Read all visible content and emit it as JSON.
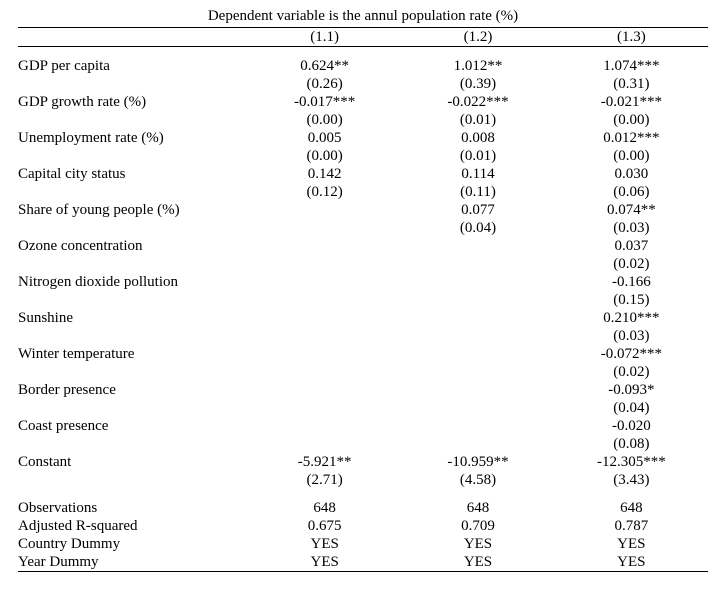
{
  "caption": "Dependent variable is the annul population rate (%)",
  "headers": {
    "c1": "(1.1)",
    "c2": "(1.2)",
    "c3": "(1.3)"
  },
  "rows": [
    {
      "label": "GDP per capita",
      "c1": "0.624**",
      "se1": "(0.26)",
      "c2": "1.012**",
      "se2": "(0.39)",
      "c3": "1.074***",
      "se3": "(0.31)"
    },
    {
      "label": "GDP growth rate (%)",
      "c1": "-0.017***",
      "se1": "(0.00)",
      "c2": "-0.022***",
      "se2": "(0.01)",
      "c3": "-0.021***",
      "se3": "(0.00)"
    },
    {
      "label": "Unemployment rate (%)",
      "c1": "0.005",
      "se1": "(0.00)",
      "c2": "0.008",
      "se2": "(0.01)",
      "c3": "0.012***",
      "se3": "(0.00)"
    },
    {
      "label": "Capital city status",
      "c1": "0.142",
      "se1": "(0.12)",
      "c2": "0.114",
      "se2": "(0.11)",
      "c3": "0.030",
      "se3": "(0.06)"
    },
    {
      "label": "Share of young people (%)",
      "c1": "",
      "se1": "",
      "c2": "0.077",
      "se2": "(0.04)",
      "c3": "0.074**",
      "se3": "(0.03)"
    },
    {
      "label": "Ozone concentration",
      "c1": "",
      "se1": "",
      "c2": "",
      "se2": "",
      "c3": "0.037",
      "se3": "(0.02)"
    },
    {
      "label": "Nitrogen dioxide pollution",
      "c1": "",
      "se1": "",
      "c2": "",
      "se2": "",
      "c3": "-0.166",
      "se3": "(0.15)"
    },
    {
      "label": "Sunshine",
      "c1": "",
      "se1": "",
      "c2": "",
      "se2": "",
      "c3": "0.210***",
      "se3": "(0.03)"
    },
    {
      "label": "Winter temperature",
      "c1": "",
      "se1": "",
      "c2": "",
      "se2": "",
      "c3": "-0.072***",
      "se3": "(0.02)"
    },
    {
      "label": "Border presence",
      "c1": "",
      "se1": "",
      "c2": "",
      "se2": "",
      "c3": "-0.093*",
      "se3": "(0.04)"
    },
    {
      "label": "Coast presence",
      "c1": "",
      "se1": "",
      "c2": "",
      "se2": "",
      "c3": "-0.020",
      "se3": "(0.08)"
    },
    {
      "label": "Constant",
      "c1": "-5.921**",
      "se1": "(2.71)",
      "c2": "-10.959**",
      "se2": "(4.58)",
      "c3": "-12.305***",
      "se3": "(3.43)"
    }
  ],
  "footer": [
    {
      "label": "Observations",
      "c1": "648",
      "c2": "648",
      "c3": "648"
    },
    {
      "label": "Adjusted R-squared",
      "c1": "0.675",
      "c2": "0.709",
      "c3": "0.787"
    },
    {
      "label": "Country Dummy",
      "c1": "YES",
      "c2": "YES",
      "c3": "YES"
    },
    {
      "label": "Year Dummy",
      "c1": "YES",
      "c2": "YES",
      "c3": "YES"
    }
  ]
}
